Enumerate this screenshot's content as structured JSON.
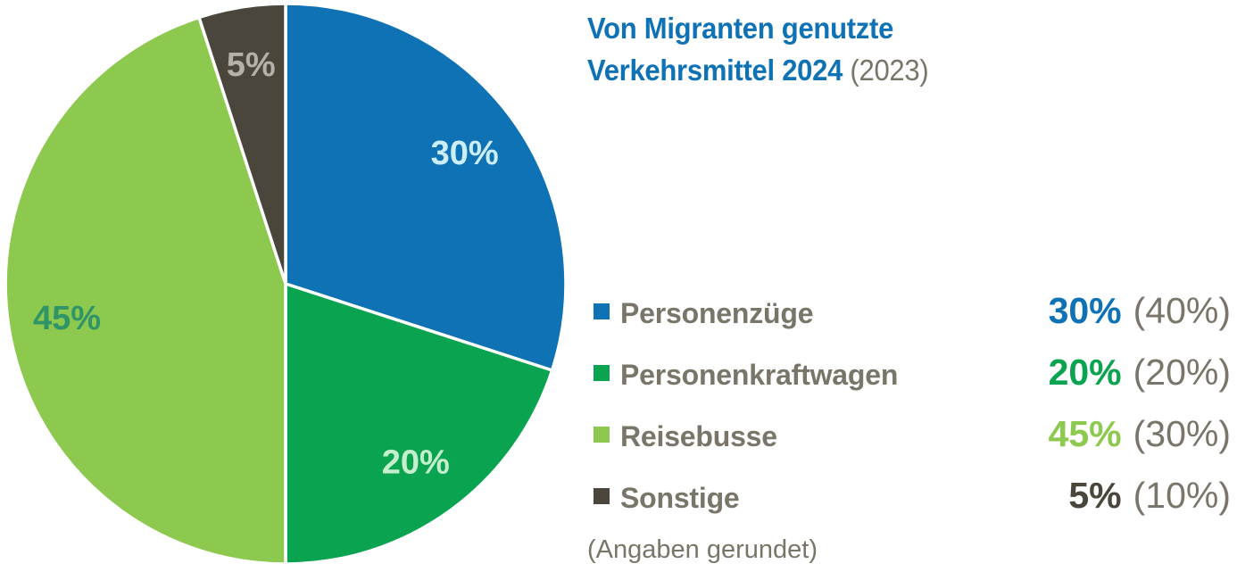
{
  "title": {
    "line1": "Von Migranten genutzte",
    "line2_bold": "Verkehrsmittel 2024",
    "line2_suffix": "(2023)"
  },
  "footnote": "(Angaben gerundet)",
  "colors": {
    "accent_blue": "#0F72B5",
    "green": "#0AA350",
    "light_green": "#8DC94E",
    "dark_gray": "#4A463C",
    "text_gray": "#7A7569",
    "background": "#FFFFFF"
  },
  "chart_data": {
    "type": "pie",
    "title": "Von Migranten genutzte Verkehrsmittel 2024 (2023)",
    "unit": "%",
    "direction": "clockwise",
    "start_angle_deg": 0,
    "legend_position": "right",
    "series_names": [
      "2024",
      "2023"
    ],
    "annotation": "(Angaben gerundet)",
    "slices": [
      {
        "label": "Personenzüge",
        "value": 30,
        "prev_value": 40,
        "value_label": "30%",
        "prev_label": "(40%)",
        "color": "#0F72B5",
        "pct_label_color": "#CBEEF9"
      },
      {
        "label": "Personenkraftwagen",
        "value": 20,
        "prev_value": 20,
        "value_label": "20%",
        "prev_label": "(20%)",
        "color": "#0AA350",
        "pct_label_color": "#C5EECD"
      },
      {
        "label": "Reisebusse",
        "value": 45,
        "prev_value": 30,
        "value_label": "45%",
        "prev_label": "(30%)",
        "color": "#8DC94E",
        "pct_label_color": "#2F9467"
      },
      {
        "label": "Sonstige",
        "value": 5,
        "prev_value": 10,
        "value_label": "5%",
        "prev_label": "(10%)",
        "color": "#4A463C",
        "pct_label_color": "#B5B1A8"
      }
    ]
  }
}
